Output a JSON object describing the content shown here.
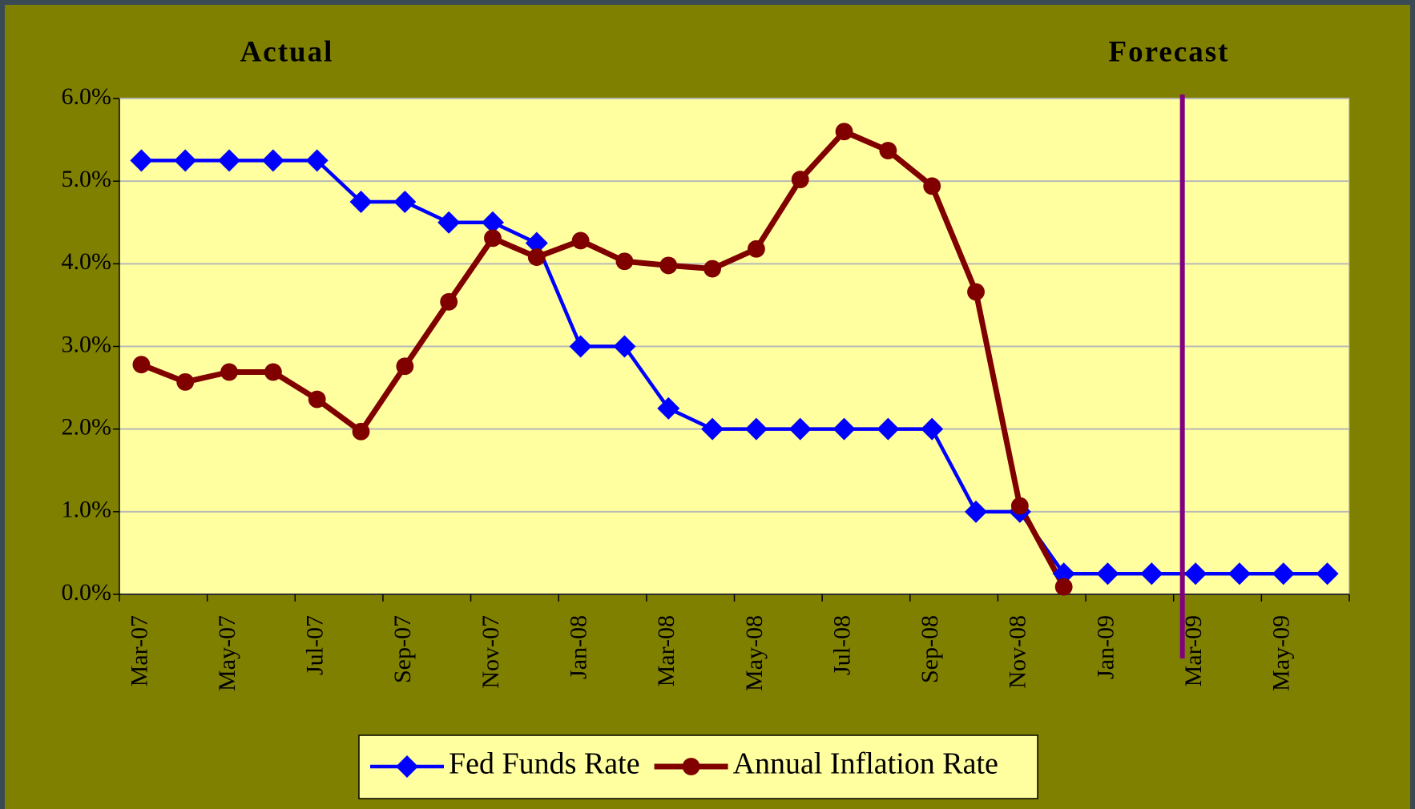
{
  "chart_data": {
    "type": "line",
    "annotations": [
      "Actual",
      "Forecast"
    ],
    "categories": [
      "Mar-07",
      null,
      "May-07",
      null,
      "Jul-07",
      null,
      "Sep-07",
      null,
      "Nov-07",
      null,
      "Jan-08",
      null,
      "Mar-08",
      null,
      "May-08",
      null,
      "Jul-08",
      null,
      "Sep-08",
      null,
      "Nov-08",
      null,
      "Jan-09",
      null,
      "Mar-09",
      null,
      "May-09",
      null
    ],
    "series": [
      {
        "name": "Fed Funds Rate",
        "color": "#0000ff",
        "marker": "diamond",
        "values": [
          5.25,
          5.25,
          5.25,
          5.25,
          5.25,
          4.75,
          4.75,
          4.5,
          4.5,
          4.25,
          3.0,
          3.0,
          2.25,
          2.0,
          2.0,
          2.0,
          2.0,
          2.0,
          2.0,
          1.0,
          1.0,
          0.25,
          0.25,
          0.25,
          0.25,
          0.25,
          0.25,
          0.25
        ]
      },
      {
        "name": "Annual Inflation Rate",
        "color": "#800000",
        "marker": "circle",
        "values": [
          2.78,
          2.57,
          2.69,
          2.69,
          2.36,
          1.97,
          2.76,
          3.54,
          4.31,
          4.08,
          4.28,
          4.03,
          3.98,
          3.94,
          4.18,
          5.02,
          5.6,
          5.37,
          4.94,
          3.66,
          1.07,
          0.09,
          null,
          null,
          null,
          null,
          null,
          null
        ]
      }
    ],
    "ylim": [
      0,
      6
    ],
    "yticks": [
      {
        "value": 0,
        "label": "0.0%"
      },
      {
        "value": 1,
        "label": "1.0%"
      },
      {
        "value": 2,
        "label": "2.0%"
      },
      {
        "value": 3,
        "label": "3.0%"
      },
      {
        "value": 4,
        "label": "4.0%"
      },
      {
        "value": 5,
        "label": "5.0%"
      },
      {
        "value": 6,
        "label": "6.0%"
      }
    ],
    "grid": true,
    "legend": "bottom"
  }
}
